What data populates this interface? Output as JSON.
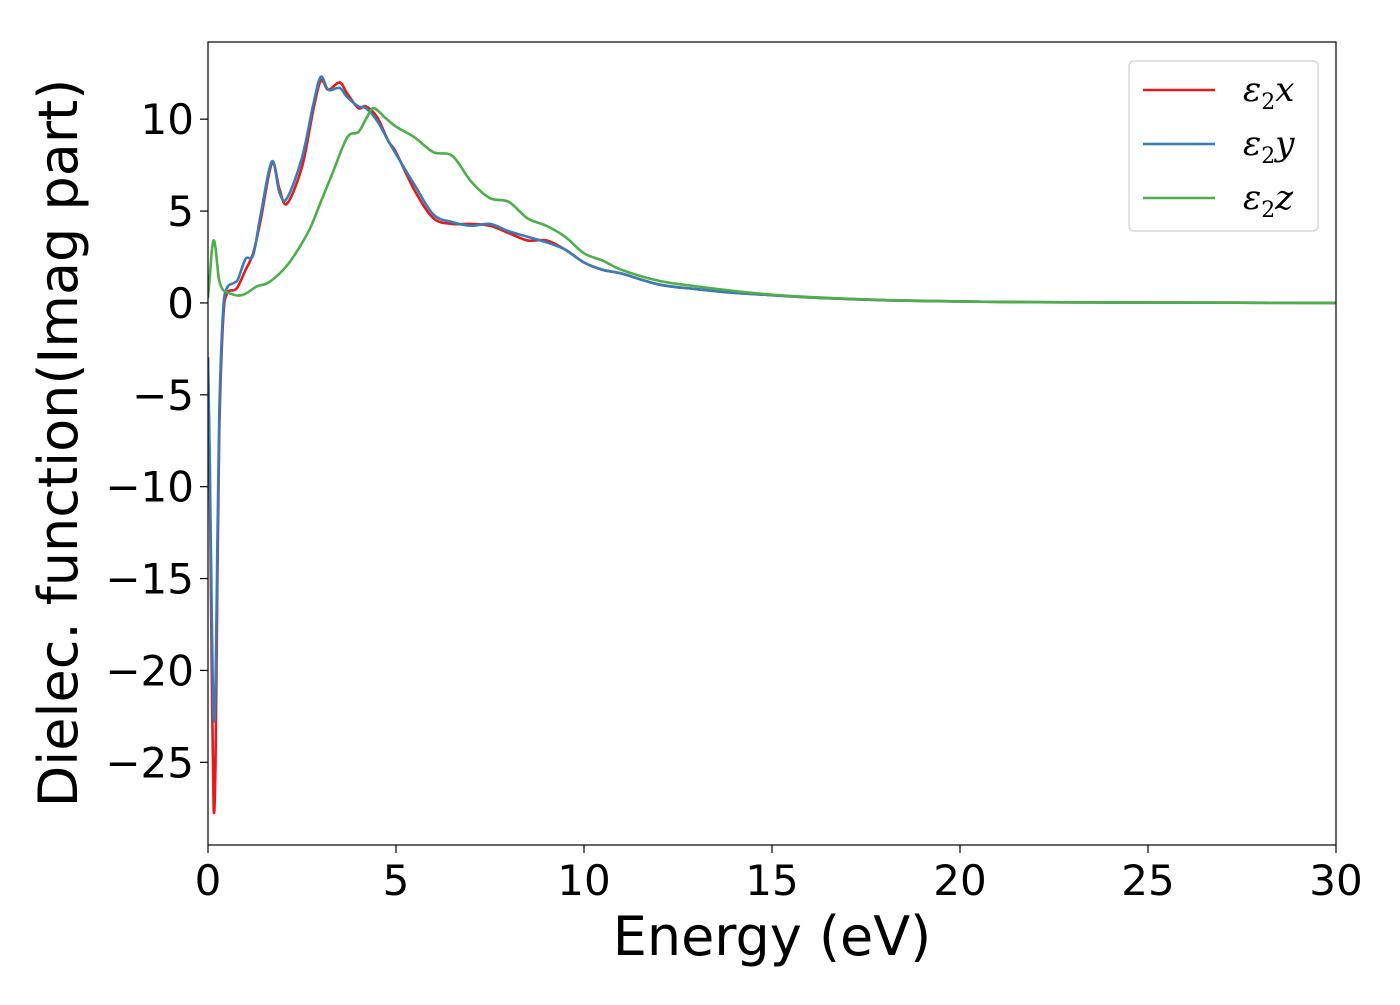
{
  "chart_data": {
    "type": "line",
    "xlabel": "Energy (eV)",
    "ylabel": "Dielec. function(Imag part)",
    "xlim": [
      0,
      30
    ],
    "ylim": [
      -29.5,
      14.2
    ],
    "xticks": [
      0,
      5,
      10,
      15,
      20,
      25,
      30
    ],
    "xtick_labels": [
      "0",
      "5",
      "10",
      "15",
      "20",
      "25",
      "30"
    ],
    "yticks": [
      10,
      5,
      0,
      -5,
      -10,
      -15,
      -20,
      -25
    ],
    "ytick_labels": [
      "10",
      "5",
      "0",
      "−5",
      "−10",
      "−15",
      "−20",
      "−25"
    ],
    "grid": false,
    "legend_position": "top-right",
    "series": [
      {
        "name": "ε",
        "sub": "2",
        "suffix": "x",
        "color": "#e41a1c",
        "x": [
          0,
          0.05,
          0.1,
          0.15,
          0.2,
          0.25,
          0.3,
          0.4,
          0.5,
          0.7,
          0.8,
          1.0,
          1.2,
          1.4,
          1.7,
          1.9,
          2.1,
          2.5,
          2.8,
          3.0,
          3.2,
          3.5,
          3.7,
          4.0,
          4.2,
          4.5,
          4.8,
          5.0,
          5.5,
          6.0,
          6.5,
          7.0,
          7.5,
          8.0,
          8.5,
          9.0,
          9.5,
          10.0,
          10.5,
          11.0,
          12.0,
          13.0,
          14.0,
          15.0,
          16.0,
          18.0,
          20.0,
          22.0,
          25.0,
          30.0
        ],
        "y": [
          -3.0,
          -10.0,
          -20.0,
          -27.5,
          -25.0,
          -15.0,
          -7.0,
          -1.0,
          0.5,
          0.7,
          0.9,
          1.8,
          2.7,
          4.5,
          7.6,
          6.2,
          5.4,
          7.4,
          10.5,
          12.1,
          11.6,
          12.0,
          11.4,
          10.6,
          10.7,
          10.1,
          8.8,
          8.2,
          6.1,
          4.6,
          4.3,
          4.3,
          4.2,
          3.8,
          3.4,
          3.4,
          2.9,
          2.2,
          1.8,
          1.6,
          1.0,
          0.75,
          0.55,
          0.42,
          0.3,
          0.15,
          0.08,
          0.04,
          0.02,
          0.0
        ]
      },
      {
        "name": "ε",
        "sub": "2",
        "suffix": "y",
        "color": "#377eb8",
        "x": [
          0,
          0.05,
          0.1,
          0.15,
          0.2,
          0.25,
          0.3,
          0.4,
          0.5,
          0.7,
          0.8,
          1.0,
          1.2,
          1.4,
          1.7,
          1.9,
          2.1,
          2.5,
          2.8,
          3.0,
          3.2,
          3.5,
          3.7,
          4.0,
          4.2,
          4.5,
          4.8,
          5.0,
          5.5,
          6.0,
          6.5,
          7.0,
          7.5,
          8.0,
          8.5,
          9.0,
          9.5,
          10.0,
          10.5,
          11.0,
          12.0,
          13.0,
          14.0,
          15.0,
          16.0,
          18.0,
          20.0,
          22.0,
          25.0,
          30.0
        ],
        "y": [
          -3.0,
          -9.0,
          -17.0,
          -22.5,
          -21.0,
          -13.0,
          -6.0,
          -0.5,
          0.8,
          1.1,
          1.3,
          2.4,
          2.6,
          4.8,
          7.7,
          6.0,
          5.7,
          7.9,
          10.8,
          12.3,
          11.6,
          11.7,
          11.2,
          10.7,
          10.6,
          9.9,
          8.8,
          8.1,
          6.4,
          4.8,
          4.4,
          4.2,
          4.3,
          3.9,
          3.6,
          3.3,
          2.9,
          2.2,
          1.8,
          1.6,
          1.0,
          0.75,
          0.55,
          0.42,
          0.3,
          0.15,
          0.08,
          0.04,
          0.02,
          0.0
        ]
      },
      {
        "name": "ε",
        "sub": "2",
        "suffix": "z",
        "color": "#4daf4a",
        "x": [
          0,
          0.05,
          0.1,
          0.15,
          0.2,
          0.25,
          0.3,
          0.4,
          0.5,
          0.6,
          0.8,
          1.0,
          1.3,
          1.6,
          2.0,
          2.3,
          2.7,
          3.0,
          3.3,
          3.7,
          4.0,
          4.2,
          4.4,
          4.7,
          5.0,
          5.5,
          6.0,
          6.5,
          7.0,
          7.5,
          8.0,
          8.5,
          9.0,
          9.5,
          10.0,
          10.5,
          11.0,
          12.0,
          13.0,
          14.0,
          15.0,
          16.0,
          18.0,
          20.0,
          22.0,
          25.0,
          30.0
        ],
        "y": [
          0.3,
          1.5,
          2.8,
          3.4,
          3.0,
          2.0,
          1.2,
          0.7,
          0.6,
          0.5,
          0.4,
          0.5,
          0.9,
          1.1,
          1.8,
          2.6,
          4.0,
          5.5,
          7.0,
          9.0,
          9.3,
          10.0,
          10.6,
          10.1,
          9.6,
          9.0,
          8.2,
          8.0,
          6.6,
          5.7,
          5.5,
          4.6,
          4.2,
          3.6,
          2.7,
          2.3,
          1.8,
          1.2,
          0.9,
          0.65,
          0.45,
          0.32,
          0.16,
          0.08,
          0.04,
          0.02,
          0.0
        ]
      }
    ]
  }
}
